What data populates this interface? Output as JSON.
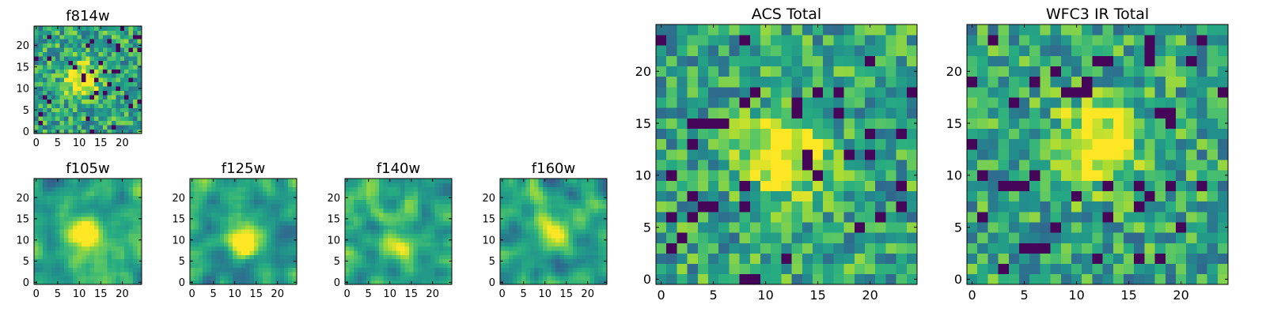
{
  "chart_data": [
    {
      "type": "heatmap",
      "title": "f814w",
      "xlim": [
        -0.5,
        24.5
      ],
      "ylim": [
        -0.5,
        24.5
      ],
      "xticks": [
        "0",
        "5",
        "10",
        "15",
        "20"
      ],
      "yticks": [
        "0",
        "5",
        "10",
        "15",
        "20"
      ],
      "grid_size": [
        25,
        25
      ],
      "colormap": "viridis",
      "pixel_scale": "fine",
      "bright_center": [
        11,
        12
      ],
      "texture": "noisy"
    },
    {
      "type": "heatmap",
      "title": "f105w",
      "xlim": [
        -0.5,
        24.5
      ],
      "ylim": [
        -0.5,
        24.5
      ],
      "xticks": [
        "0",
        "5",
        "10",
        "15",
        "20"
      ],
      "yticks": [
        "0",
        "5",
        "10",
        "15",
        "20"
      ],
      "grid_size": [
        25,
        25
      ],
      "colormap": "viridis",
      "pixel_scale": "fine",
      "bright_center": [
        11,
        11
      ],
      "texture": "smooth"
    },
    {
      "type": "heatmap",
      "title": "f125w",
      "xlim": [
        -0.5,
        24.5
      ],
      "ylim": [
        -0.5,
        24.5
      ],
      "xticks": [
        "0",
        "5",
        "10",
        "15",
        "20"
      ],
      "yticks": [
        "0",
        "5",
        "10",
        "15",
        "20"
      ],
      "grid_size": [
        25,
        25
      ],
      "colormap": "viridis",
      "pixel_scale": "fine",
      "bright_center": [
        12,
        10
      ],
      "texture": "smooth"
    },
    {
      "type": "heatmap",
      "title": "f140w",
      "xlim": [
        -0.5,
        24.5
      ],
      "ylim": [
        -0.5,
        24.5
      ],
      "xticks": [
        "0",
        "5",
        "10",
        "15",
        "20"
      ],
      "yticks": [
        "0",
        "5",
        "10",
        "15",
        "20"
      ],
      "grid_size": [
        25,
        25
      ],
      "colormap": "viridis",
      "pixel_scale": "fine",
      "bright_center": [
        12,
        9
      ],
      "texture": "smooth"
    },
    {
      "type": "heatmap",
      "title": "f160w",
      "xlim": [
        -0.5,
        24.5
      ],
      "ylim": [
        -0.5,
        24.5
      ],
      "xticks": [
        "0",
        "5",
        "10",
        "15",
        "20"
      ],
      "yticks": [
        "0",
        "5",
        "10",
        "15",
        "20"
      ],
      "grid_size": [
        25,
        25
      ],
      "colormap": "viridis",
      "pixel_scale": "fine",
      "bright_center": [
        12,
        12
      ],
      "texture": "smooth"
    },
    {
      "type": "heatmap",
      "title": "ACS Total",
      "xlim": [
        -0.5,
        24.5
      ],
      "ylim": [
        -0.5,
        24.5
      ],
      "xticks": [
        "0",
        "5",
        "10",
        "15",
        "20"
      ],
      "yticks": [
        "0",
        "5",
        "10",
        "15",
        "20"
      ],
      "grid_size": [
        25,
        25
      ],
      "colormap": "viridis",
      "pixel_scale": "coarse",
      "bright_center": [
        12,
        12
      ],
      "texture": "noisy"
    },
    {
      "type": "heatmap",
      "title": "WFC3 IR Total",
      "xlim": [
        -0.5,
        24.5
      ],
      "ylim": [
        -0.5,
        24.5
      ],
      "xticks": [
        "0",
        "5",
        "10",
        "15",
        "20"
      ],
      "yticks": [
        "0",
        "5",
        "10",
        "15",
        "20"
      ],
      "grid_size": [
        25,
        25
      ],
      "colormap": "viridis",
      "pixel_scale": "coarse",
      "bright_center": [
        12,
        13
      ],
      "texture": "noisy"
    }
  ]
}
